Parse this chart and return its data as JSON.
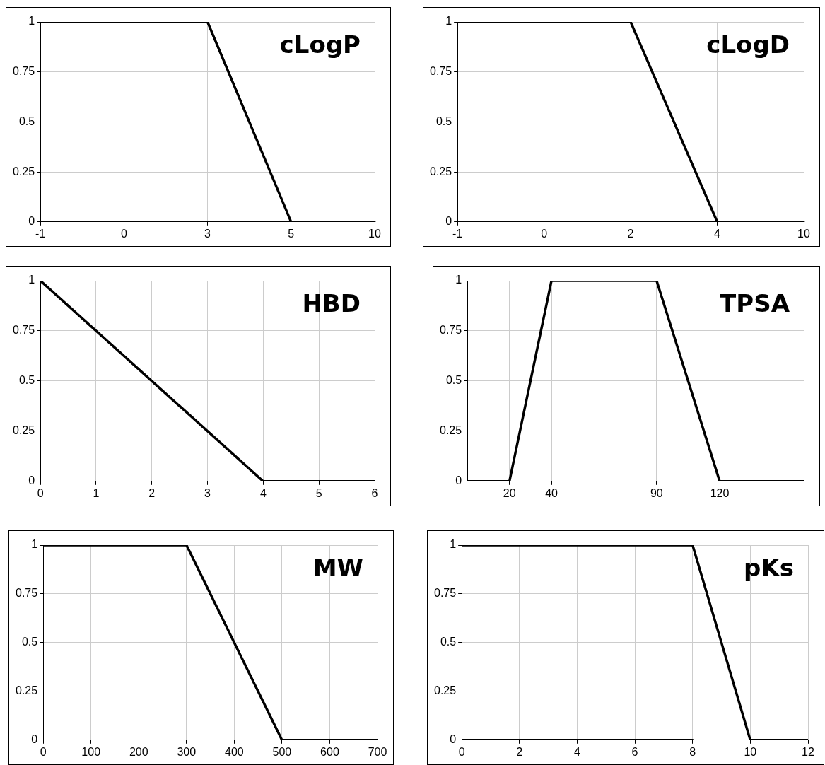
{
  "chart_data": [
    {
      "type": "line",
      "title": "cLogP",
      "categories": [
        "-1",
        "0",
        "3",
        "5",
        "10"
      ],
      "values": [
        1,
        1,
        1,
        0,
        0
      ],
      "color": "#000000",
      "ylim": [
        0,
        1
      ],
      "yticks": [
        0,
        0.25,
        0.5,
        0.75,
        1
      ],
      "grid": true,
      "marker": "none",
      "line_style": "solid"
    },
    {
      "type": "line",
      "title": "cLogD",
      "categories": [
        "-1",
        "0",
        "2",
        "4",
        "10"
      ],
      "values": [
        1,
        1,
        1,
        0,
        0
      ],
      "color": "#000000",
      "ylim": [
        0,
        1
      ],
      "yticks": [
        0,
        0.25,
        0.5,
        0.75,
        1
      ],
      "grid": true,
      "marker": "none",
      "line_style": "solid"
    },
    {
      "type": "line",
      "title": "HBD",
      "x": [
        0,
        4,
        6
      ],
      "values": [
        1,
        0,
        0
      ],
      "color": "#000000",
      "xlim": [
        0,
        6
      ],
      "xticks": [
        0,
        1,
        2,
        3,
        4,
        5,
        6
      ],
      "ylim": [
        0,
        1
      ],
      "yticks": [
        0,
        0.25,
        0.5,
        0.75,
        1
      ],
      "grid": true,
      "marker": "none",
      "line_style": "solid"
    },
    {
      "type": "line",
      "title": "TPSA",
      "x": [
        0,
        20,
        40,
        90,
        120,
        160
      ],
      "values": [
        0,
        0,
        1,
        1,
        0,
        0
      ],
      "color": "#000000",
      "xlim": [
        0,
        160
      ],
      "xticks": [
        20,
        40,
        90,
        120
      ],
      "ylim": [
        0,
        1
      ],
      "yticks": [
        0,
        0.25,
        0.5,
        0.75,
        1
      ],
      "grid": true,
      "marker": "none",
      "line_style": "solid"
    },
    {
      "type": "line",
      "title": "MW",
      "x": [
        0,
        300,
        500,
        700
      ],
      "values": [
        1,
        1,
        0,
        0
      ],
      "color": "#000000",
      "xlim": [
        0,
        700
      ],
      "xticks": [
        0,
        100,
        200,
        300,
        400,
        500,
        600,
        700
      ],
      "ylim": [
        0,
        1
      ],
      "yticks": [
        0,
        0.25,
        0.5,
        0.75,
        1
      ],
      "grid": true,
      "marker": "none",
      "line_style": "solid"
    },
    {
      "type": "line",
      "title": "pKs",
      "series": [
        {
          "x": [
            0,
            8,
            10,
            12
          ],
          "values": [
            1,
            1,
            0,
            0
          ],
          "color": "#000000"
        },
        {
          "x": [
            0,
            8
          ],
          "values": [
            0,
            0
          ],
          "color": "#000000"
        }
      ],
      "xlim": [
        0,
        12
      ],
      "xticks": [
        0,
        2,
        4,
        6,
        8,
        10,
        12
      ],
      "ylim": [
        0,
        1
      ],
      "yticks": [
        0,
        0.25,
        0.5,
        0.75,
        1
      ],
      "grid": true,
      "marker": "none",
      "line_style": "solid"
    }
  ]
}
